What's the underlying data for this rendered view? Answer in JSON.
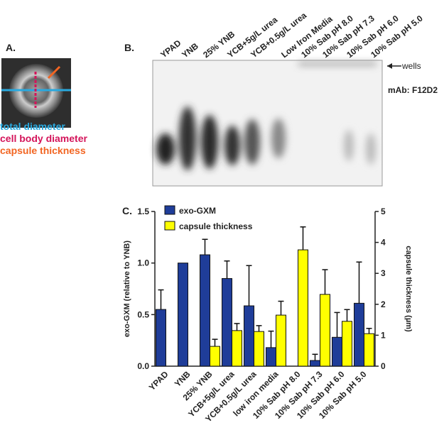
{
  "panel_a": {
    "label": "A.",
    "legend": [
      "total diameter",
      "cell body diameter",
      "capsule thickness"
    ]
  },
  "panel_b": {
    "label": "B.",
    "lanes": [
      "YPAD",
      "YNB",
      "25% YNB",
      "YCB+5g/L urea",
      "YCB+0.5g/L urea",
      "Low Iron Media",
      "10% Sab pH 8.0",
      "10% Sab pH 7.3",
      "10% Sab pH 6.0",
      "10% Sab pH 5.0"
    ],
    "wells": "wells",
    "antibody": "mAb: F12D2"
  },
  "chart_data": {
    "type": "bar",
    "panel_label": "C.",
    "categories": [
      "YPAD",
      "YNB",
      "25% YNB",
      "YCB+5g/L urea",
      "YCB+0.5g/L urea",
      "low iron media",
      "10% Sab pH 8.0",
      "10% Sab pH 7.3",
      "10% Sab pH 6.0",
      "10% Sab pH 5.0"
    ],
    "y_label": "exo-GXM (relative to YNB)",
    "y2_label": "capsule thickness (µm)",
    "ylim": [
      0,
      1.5
    ],
    "yticks": [
      {
        "value": 0,
        "label": "0.0"
      },
      0.5,
      {
        "value": 1,
        "label": "1.0"
      },
      1.5
    ],
    "y2lim": [
      0,
      5
    ],
    "y2ticks": [
      0,
      1,
      2,
      3,
      4,
      5
    ],
    "series": [
      {
        "name": "exo-GXM",
        "color": "#1f3d99",
        "values": [
          0.55,
          1.0,
          1.08,
          0.85,
          0.585,
          0.18,
          null,
          0.055,
          0.28,
          0.61
        ],
        "errors": [
          0.19,
          null,
          0.15,
          0.17,
          0.39,
          0.16,
          null,
          0.06,
          0.24,
          0.4
        ]
      },
      {
        "name": "capsule thickness",
        "color": "#ffff00",
        "axis": "y2",
        "values": [
          null,
          null,
          0.64,
          1.15,
          1.12,
          1.65,
          3.76,
          2.32,
          1.45,
          1.05
        ],
        "errors": [
          null,
          null,
          0.23,
          0.23,
          0.19,
          0.45,
          0.74,
          0.8,
          0.38,
          0.17
        ]
      }
    ]
  }
}
